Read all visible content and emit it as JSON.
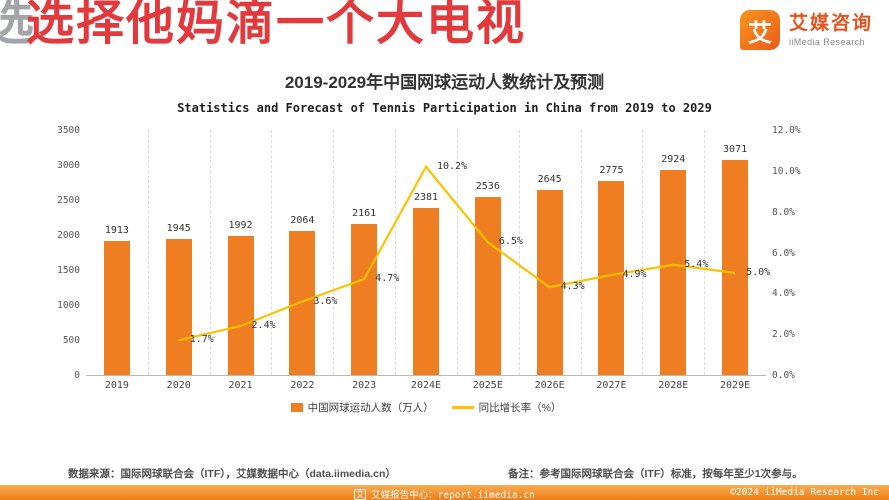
{
  "watermark": {
    "text": "选择他妈滴一个大电视",
    "ghost_text": "选"
  },
  "logo": {
    "symbol": "艾",
    "name_cn": "艾媒咨询",
    "name_en": "iiMedia Research"
  },
  "chart_data": {
    "type": "bar",
    "title": "2019-2029年中国网球运动人数统计及预测",
    "subtitle": "Statistics and Forecast of Tennis Participation in China from 2019 to 2029",
    "categories": [
      "2019",
      "2020",
      "2021",
      "2022",
      "2023",
      "2024E",
      "2025E",
      "2026E",
      "2027E",
      "2028E",
      "2029E"
    ],
    "series": [
      {
        "name": "中国网球运动人数（万人）",
        "type": "bar",
        "color": "#ef7d21",
        "values": [
          1913,
          1945,
          1992,
          2064,
          2161,
          2381,
          2536,
          2645,
          2775,
          2924,
          3071
        ]
      },
      {
        "name": "同比增长率（%）",
        "type": "line",
        "color": "#ffc000",
        "values": [
          null,
          1.7,
          2.4,
          3.6,
          4.7,
          10.2,
          6.5,
          4.3,
          4.9,
          5.4,
          5.0
        ]
      }
    ],
    "left_axis": {
      "min": 0,
      "max": 3500,
      "step": 500,
      "ticks": [
        "0",
        "500",
        "1000",
        "1500",
        "2000",
        "2500",
        "3000",
        "3500"
      ]
    },
    "right_axis": {
      "min": 0,
      "max": 12,
      "step": 2,
      "ticks": [
        "0.0%",
        "2.0%",
        "4.0%",
        "6.0%",
        "8.0%",
        "10.0%",
        "12.0%"
      ]
    },
    "grid": "vertical-dashed",
    "legend_position": "bottom"
  },
  "footnotes": {
    "source": "数据来源：国际网球联合会（ITF），艾媒数据中心（data.iimedia.cn）",
    "note": "备注：参考国际网球联合会（ITF）标准，按每年至少1次参与。"
  },
  "footer": {
    "logo_symbol": "艾",
    "center": "艾媒报告中心：report.iimedia.cn",
    "right": "©2024  iiMedia Research  Inc"
  }
}
